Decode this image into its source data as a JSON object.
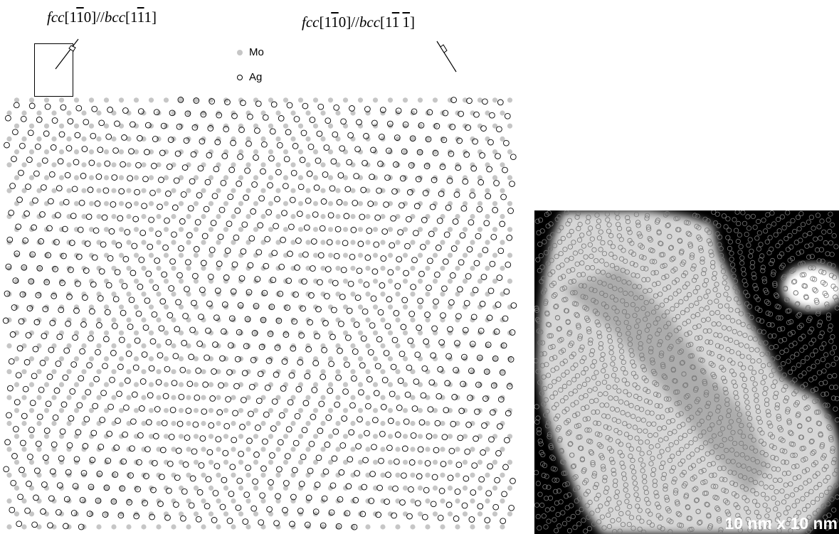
{
  "orientation_left": {
    "prefix": "fcc",
    "dir1": [
      "1",
      "1",
      "0"
    ],
    "dir1_bar": [
      false,
      true,
      false
    ],
    "sep": "//",
    "prefix2": "bcc",
    "dir2": [
      "1",
      "1",
      "1"
    ],
    "dir2_bar": [
      false,
      true,
      false
    ]
  },
  "orientation_right": {
    "prefix": "fcc",
    "dir1": [
      "1",
      "1",
      "0"
    ],
    "dir1_bar": [
      false,
      true,
      false
    ],
    "sep": "//",
    "prefix2": "bcc",
    "dir2": [
      "1",
      "1",
      "1"
    ],
    "dir2_bar": [
      false,
      true,
      true
    ]
  },
  "legend": {
    "mo_label": "Mo",
    "ag_label": "Ag"
  },
  "colors": {
    "mo": "#c6c6c6",
    "ag_stroke": "#000000",
    "micro_bright": "#d9d9d9",
    "micro_dark": "#000000"
  },
  "micrograph": {
    "scale_label": "10 nm x 10 nm"
  }
}
